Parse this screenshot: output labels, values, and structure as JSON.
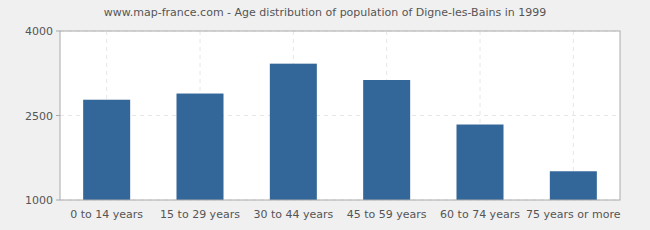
{
  "chart_data": {
    "type": "bar",
    "title": "www.map-france.com - Age distribution of population of Digne-les-Bains in 1999",
    "categories": [
      "0 to 14 years",
      "15 to 29 years",
      "30 to 44 years",
      "45 to 59 years",
      "60 to 74 years",
      "75 years or more"
    ],
    "values": [
      2780,
      2890,
      3420,
      3130,
      2340,
      1510
    ],
    "color": "#336699",
    "ylim": [
      1000,
      4000
    ],
    "yticks": [
      1000,
      2500,
      4000
    ],
    "grid": true
  }
}
